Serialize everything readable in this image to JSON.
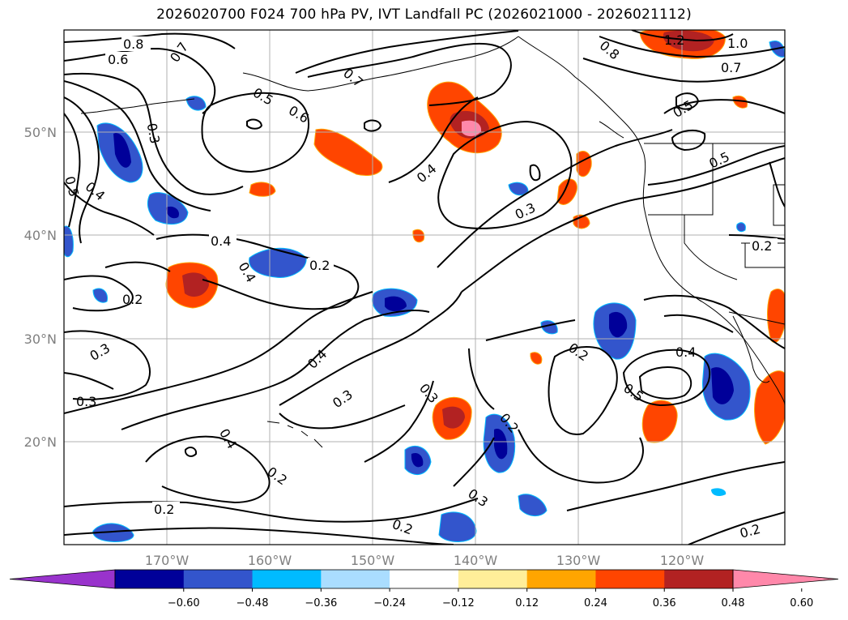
{
  "title": "2026020700 F024 700 hPa PV, IVT Landfall PC (2026021000 - 2026021112)",
  "lat_labels": [
    "50°N",
    "40°N",
    "30°N",
    "20°N"
  ],
  "lon_labels": [
    "170°W",
    "160°W",
    "150°W",
    "140°W",
    "130°W",
    "120°W"
  ],
  "contour_labels": [
    "0.8",
    "0.6",
    "0.7",
    "0.7",
    "0.5",
    "0.6",
    "0.3",
    "0.4",
    "0.5",
    "1.2",
    "1.0",
    "0.8",
    "0.7",
    "0.5",
    "0.5",
    "0.4",
    "0.3",
    "0.4",
    "0.2",
    "0.2",
    "0.3",
    "0.3",
    "0.4",
    "0.3",
    "0.4",
    "0.3",
    "0.2",
    "0.4",
    "0.5",
    "0.2",
    "0.4",
    "0.2",
    "0.2",
    "0.3",
    "0.2",
    "0.2",
    "0.2"
  ],
  "colorbar": {
    "ticks": [
      "−0.60",
      "−0.48",
      "−0.36",
      "−0.24",
      "−0.12",
      "0.12",
      "0.24",
      "0.36",
      "0.48",
      "0.60"
    ],
    "colors": [
      "#9933cc",
      "#000099",
      "#3355cc",
      "#00bbff",
      "#aaddff",
      "#ffffff",
      "#ffee99",
      "#ffa500",
      "#ff4500",
      "#b22222",
      "#ff88aa"
    ]
  }
}
